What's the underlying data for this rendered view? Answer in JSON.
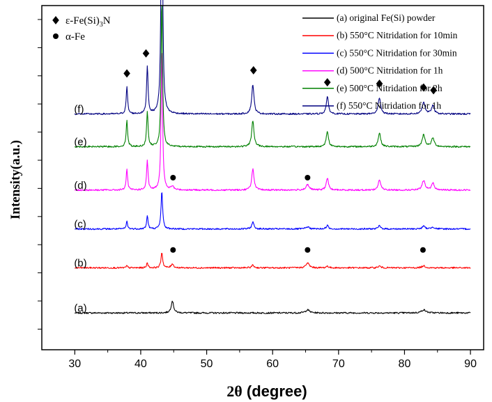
{
  "chart_data": {
    "type": "line",
    "title": "",
    "xlabel_prefix": "2θ",
    "xlabel_rest": " (degree)",
    "ylabel": "Intensity(a.u.)",
    "xlim": [
      25,
      92
    ],
    "xticks": [
      30,
      40,
      50,
      60,
      70,
      80,
      90
    ],
    "ylim": [
      0,
      1
    ],
    "y_tick_labels_shown": false,
    "legend_position": "top-right",
    "marker_legend": [
      {
        "symbol": "diamond",
        "label_main": "ε-Fe(Si)",
        "label_sub": "3",
        "label_after": "N"
      },
      {
        "symbol": "circle",
        "label_main": "α-Fe",
        "label_sub": "",
        "label_after": ""
      }
    ],
    "series": [
      {
        "id": "a",
        "name": "(a) original Fe(Si) powder",
        "curve_label": "(a)",
        "color": "#000000",
        "baseline": 0.107,
        "peaks": [
          {
            "x": 44.8,
            "h": 0.035,
            "w": 0.22
          },
          {
            "x": 65.3,
            "h": 0.009,
            "w": 0.35
          },
          {
            "x": 82.9,
            "h": 0.009,
            "w": 0.4
          }
        ],
        "markers": []
      },
      {
        "id": "b",
        "name": "(b) 550°C Nitridation for 10min",
        "curve_label": "(b)",
        "color": "#ff0000",
        "baseline": 0.238,
        "peaks": [
          {
            "x": 37.9,
            "h": 0.006,
            "w": 0.12
          },
          {
            "x": 41.0,
            "h": 0.016,
            "w": 0.12
          },
          {
            "x": 43.2,
            "h": 0.045,
            "w": 0.15
          },
          {
            "x": 44.8,
            "h": 0.012,
            "w": 0.2
          },
          {
            "x": 57.0,
            "h": 0.008,
            "w": 0.2
          },
          {
            "x": 65.3,
            "h": 0.014,
            "w": 0.3
          },
          {
            "x": 68.3,
            "h": 0.005,
            "w": 0.2
          },
          {
            "x": 76.2,
            "h": 0.005,
            "w": 0.25
          },
          {
            "x": 82.9,
            "h": 0.006,
            "w": 0.3
          }
        ],
        "markers": [
          {
            "symbol": "circle",
            "x": 44.9,
            "h": 0.052
          },
          {
            "symbol": "circle",
            "x": 65.3,
            "h": 0.052
          },
          {
            "symbol": "circle",
            "x": 82.8,
            "h": 0.052
          }
        ]
      },
      {
        "id": "c",
        "name": "(c) 550°C Nitridation for 30min",
        "curve_label": "(c)",
        "color": "#0000ff",
        "baseline": 0.351,
        "peaks": [
          {
            "x": 37.9,
            "h": 0.022,
            "w": 0.12
          },
          {
            "x": 41.0,
            "h": 0.04,
            "w": 0.12
          },
          {
            "x": 43.2,
            "h": 0.112,
            "w": 0.14
          },
          {
            "x": 57.0,
            "h": 0.02,
            "w": 0.2
          },
          {
            "x": 65.3,
            "h": 0.006,
            "w": 0.3
          },
          {
            "x": 68.3,
            "h": 0.01,
            "w": 0.2
          },
          {
            "x": 76.2,
            "h": 0.009,
            "w": 0.22
          },
          {
            "x": 82.9,
            "h": 0.008,
            "w": 0.25
          },
          {
            "x": 84.3,
            "h": 0.006,
            "w": 0.25
          }
        ],
        "markers": []
      },
      {
        "id": "d",
        "name": "(d) 500°C Nitridation for 1h",
        "curve_label": "(d)",
        "color": "#ff00ff",
        "baseline": 0.464,
        "peaks": [
          {
            "x": 37.9,
            "h": 0.06,
            "w": 0.13
          },
          {
            "x": 41.0,
            "h": 0.085,
            "w": 0.13
          },
          {
            "x": 43.2,
            "h": 0.42,
            "w": 0.13
          },
          {
            "x": 44.8,
            "h": 0.01,
            "w": 0.25
          },
          {
            "x": 57.0,
            "h": 0.062,
            "w": 0.2
          },
          {
            "x": 65.3,
            "h": 0.015,
            "w": 0.3
          },
          {
            "x": 68.3,
            "h": 0.035,
            "w": 0.2
          },
          {
            "x": 76.2,
            "h": 0.03,
            "w": 0.22
          },
          {
            "x": 82.9,
            "h": 0.028,
            "w": 0.25
          },
          {
            "x": 84.3,
            "h": 0.02,
            "w": 0.25
          }
        ],
        "markers": [
          {
            "symbol": "circle",
            "x": 44.9,
            "h": 0.036
          },
          {
            "symbol": "circle",
            "x": 65.3,
            "h": 0.036
          }
        ]
      },
      {
        "id": "e",
        "name": "(e) 500°C Nitridation for 2h",
        "curve_label": "(e)",
        "color": "#008000",
        "baseline": 0.59,
        "peaks": [
          {
            "x": 37.9,
            "h": 0.077,
            "w": 0.13
          },
          {
            "x": 41.0,
            "h": 0.104,
            "w": 0.13
          },
          {
            "x": 43.2,
            "h": 0.43,
            "w": 0.13
          },
          {
            "x": 57.0,
            "h": 0.077,
            "w": 0.2
          },
          {
            "x": 68.3,
            "h": 0.045,
            "w": 0.2
          },
          {
            "x": 76.2,
            "h": 0.04,
            "w": 0.22
          },
          {
            "x": 82.9,
            "h": 0.035,
            "w": 0.25
          },
          {
            "x": 84.3,
            "h": 0.025,
            "w": 0.25
          }
        ],
        "markers": []
      },
      {
        "id": "f",
        "name": "(f) 550°C Nitridation for 1h",
        "curve_label": "(f)",
        "color": "#000080",
        "baseline": 0.685,
        "peaks": [
          {
            "x": 37.9,
            "h": 0.078,
            "w": 0.13
          },
          {
            "x": 41.0,
            "h": 0.14,
            "w": 0.13
          },
          {
            "x": 43.2,
            "h": 0.835,
            "w": 0.13
          },
          {
            "x": 57.0,
            "h": 0.086,
            "w": 0.2
          },
          {
            "x": 68.3,
            "h": 0.05,
            "w": 0.2
          },
          {
            "x": 76.2,
            "h": 0.048,
            "w": 0.22
          },
          {
            "x": 82.9,
            "h": 0.035,
            "w": 0.25
          },
          {
            "x": 84.3,
            "h": 0.024,
            "w": 0.25
          }
        ],
        "markers": [
          {
            "symbol": "diamond",
            "x": 37.9,
            "h": 0.118
          },
          {
            "symbol": "diamond",
            "x": 40.8,
            "h": 0.176
          },
          {
            "symbol": "diamond",
            "x": 43.2,
            "h": 0.88
          },
          {
            "symbol": "diamond",
            "x": 57.1,
            "h": 0.127
          },
          {
            "symbol": "diamond",
            "x": 68.3,
            "h": 0.092
          },
          {
            "symbol": "diamond",
            "x": 76.2,
            "h": 0.088
          },
          {
            "symbol": "diamond",
            "x": 82.9,
            "h": 0.077
          },
          {
            "symbol": "diamond",
            "x": 84.4,
            "h": 0.069
          }
        ]
      }
    ]
  }
}
